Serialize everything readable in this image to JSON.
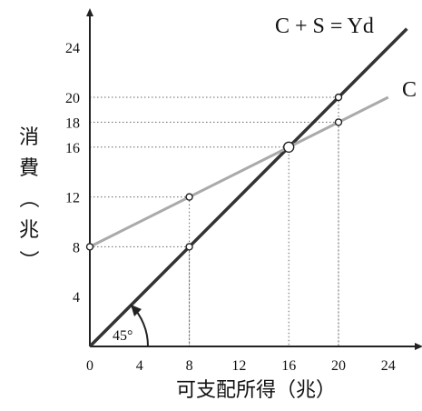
{
  "chart_data": {
    "type": "line",
    "xlabel": "可支配所得（兆）",
    "ylabel": "消費（兆）",
    "xlim": [
      0,
      26
    ],
    "ylim": [
      0,
      27
    ],
    "x_ticks": [
      0,
      4,
      8,
      12,
      16,
      20,
      24
    ],
    "y_ticks": [
      4,
      8,
      12,
      16,
      18,
      20,
      24
    ],
    "series": [
      {
        "name": "C + S = Yd",
        "x": [
          0,
          25.5
        ],
        "y": [
          0,
          25.5
        ],
        "color": "#333333"
      },
      {
        "name": "C",
        "x": [
          0,
          24
        ],
        "y": [
          8,
          20
        ],
        "color": "#aaaaaa"
      }
    ],
    "points": [
      {
        "x": 8,
        "y": 8
      },
      {
        "x": 8,
        "y": 12
      },
      {
        "x": 16,
        "y": 16
      },
      {
        "x": 20,
        "y": 18
      },
      {
        "x": 20,
        "y": 20
      },
      {
        "x": 0,
        "y": 8
      }
    ],
    "angle_annotation": "45°"
  },
  "colors": {
    "axis": "#222222",
    "line_45": "#333333",
    "line_c": "#aaaaaa",
    "guide": "#666666"
  }
}
